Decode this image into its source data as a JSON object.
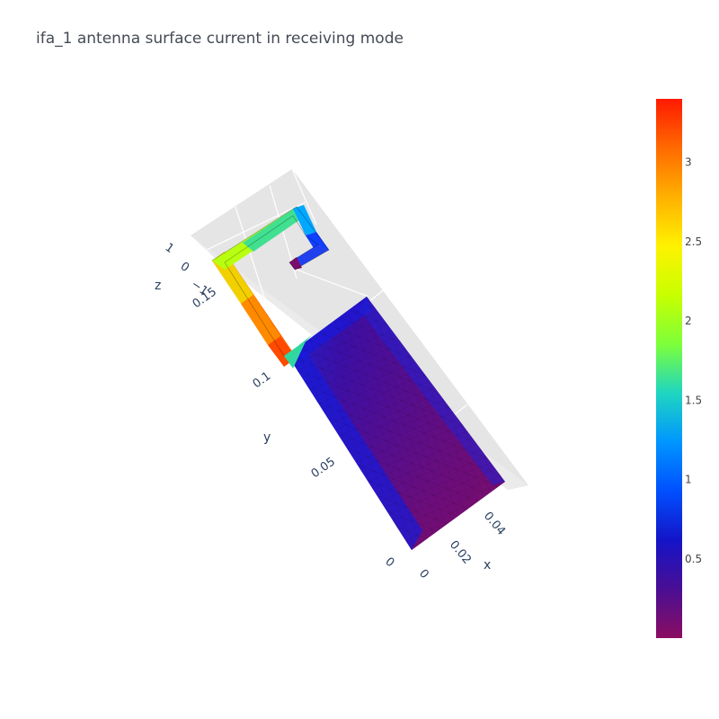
{
  "chart_data": {
    "type": "surface",
    "title": "ifa_1 antenna surface current in receiving mode",
    "axes": {
      "x": {
        "label": "x",
        "ticks": [
          "0",
          "0.02",
          "0.04"
        ]
      },
      "y": {
        "label": "y",
        "ticks": [
          "0",
          "0.05",
          "0.1",
          "0.15"
        ]
      },
      "z": {
        "label": "z",
        "ticks": [
          "1",
          "0",
          "−1"
        ]
      }
    },
    "colorbar": {
      "range": [
        0.0,
        3.4
      ],
      "ticks": [
        "0.5",
        "1",
        "1.5",
        "2",
        "2.5",
        "3"
      ],
      "tick_values": [
        0.5,
        1.0,
        1.5,
        2.0,
        2.5,
        3.0
      ],
      "colorscale": [
        "#8b0d62",
        "#4a0e94",
        "#1414c8",
        "#0050ff",
        "#0096ff",
        "#1fd6c0",
        "#7dff3a",
        "#c8ff00",
        "#fff200",
        "#ffb000",
        "#ff6a00",
        "#ff1a00"
      ]
    },
    "regions": [
      {
        "name": "ground plane",
        "current_min": 0.05,
        "current_max": 0.7
      },
      {
        "name": "inverted-F trace (feed section)",
        "current_min": 2.5,
        "current_max": 3.3
      },
      {
        "name": "inverted-F trace (arm)",
        "current_min": 1.4,
        "current_max": 2.4
      },
      {
        "name": "inverted-F trace (tip)",
        "current_min": 0.3,
        "current_max": 1.3
      }
    ]
  }
}
